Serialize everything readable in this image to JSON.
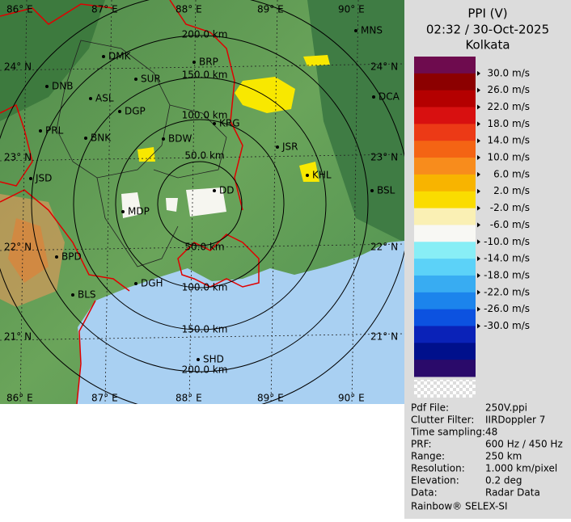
{
  "header": {
    "title": "PPI (V)",
    "datetime": "02:32 / 30-Oct-2025",
    "station": "Kolkata"
  },
  "legend": {
    "labels": [
      "30.0 m/s",
      "26.0 m/s",
      "22.0 m/s",
      "18.0 m/s",
      "14.0 m/s",
      "10.0 m/s",
      "6.0 m/s",
      "2.0 m/s",
      "-2.0 m/s",
      "-6.0 m/s",
      "-10.0 m/s",
      "-14.0 m/s",
      "-18.0 m/s",
      "-22.0 m/s",
      "-26.0 m/s",
      "-30.0 m/s"
    ],
    "colors": [
      "#6e0b4e",
      "#8c0000",
      "#b40000",
      "#d81010",
      "#ec3a16",
      "#f46414",
      "#f88c1c",
      "#f8b400",
      "#fadc00",
      "#faf0b4",
      "#f8f8f4",
      "#88eef6",
      "#5cd2f8",
      "#38acf2",
      "#1c84ec",
      "#0c52e0",
      "#0a22b8",
      "#00108c",
      "#2a0a6a"
    ]
  },
  "map": {
    "longitude_top": [
      "86° E",
      "87° E",
      "88° E",
      "89° E",
      "90° E"
    ],
    "longitude_bottom": [
      "86° E",
      "87° E",
      "88° E",
      "89° E",
      "90° E"
    ],
    "latitude_left": [
      "24° N",
      "23° N",
      "22° N",
      "21° N"
    ],
    "latitude_right": [
      "24° N",
      "23° N",
      "22° N",
      "21° N"
    ],
    "range_upper": [
      "200.0 km",
      "150.0 km",
      "100.0 km",
      "50.0 km"
    ],
    "range_lower": [
      "50.0 km",
      "100.0 km",
      "150.0 km",
      "200.0 km"
    ],
    "places": [
      "MNS",
      "DMK",
      "BRP",
      "DNB",
      "SUR",
      "ASL",
      "DGP",
      "DCA",
      "KRG",
      "PRL",
      "BNK",
      "BDW",
      "JSR",
      "JSD",
      "KHL",
      "BSL",
      "MDP",
      "DD",
      "BPD",
      "DGH",
      "BLS",
      "SHD"
    ]
  },
  "info": {
    "rows": [
      [
        "Pdf File:",
        "250V.ppi"
      ],
      [
        "Clutter Filter:",
        "IIRDoppler 7"
      ],
      [
        "Time sampling:",
        "48"
      ],
      [
        "PRF:",
        "600 Hz / 450 Hz"
      ],
      [
        "Range:",
        "250 km"
      ],
      [
        "Resolution:",
        "1.000 km/pixel"
      ],
      [
        "Elevation:",
        "0.2 deg"
      ],
      [
        "Data:",
        "Radar Data"
      ]
    ]
  },
  "footer": "Rainbow® SELEX-SI"
}
